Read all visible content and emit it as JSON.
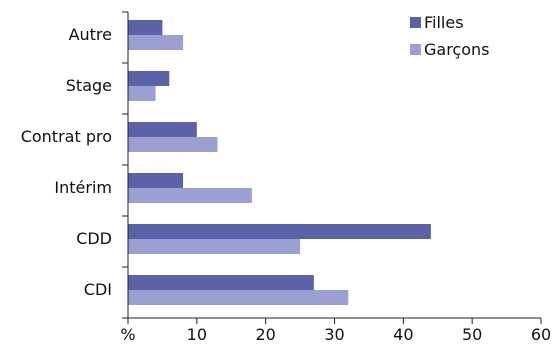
{
  "chart_data": {
    "type": "bar",
    "orientation": "horizontal",
    "categories": [
      "Autre",
      "Stage",
      "Contrat pro",
      "Intérim",
      "CDD",
      "CDI"
    ],
    "series": [
      {
        "name": "Filles",
        "values": [
          5,
          6,
          10,
          8,
          44,
          27
        ],
        "color": "#5b62a8"
      },
      {
        "name": "Garçons",
        "values": [
          8,
          4,
          13,
          18,
          25,
          32
        ],
        "color": "#9b9fd1"
      }
    ],
    "xlim": [
      0,
      60
    ],
    "xticks": [
      0,
      10,
      20,
      30,
      40,
      50,
      60
    ],
    "xtick_labels": [
      "%",
      "10",
      "20",
      "30",
      "40",
      "50",
      "60"
    ],
    "grid": false,
    "legend": "top-right"
  }
}
